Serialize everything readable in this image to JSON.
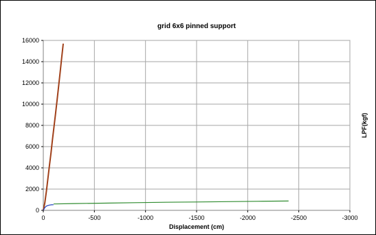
{
  "chart_data": {
    "type": "line",
    "title": "grid 6x6  pinned support",
    "xlabel": "Displacement (cm)",
    "ylabel": "LPF(kgf)",
    "xlim": [
      0,
      -3000
    ],
    "ylim": [
      0,
      16000
    ],
    "x_ticks": [
      0,
      -500,
      -1000,
      -1500,
      -2000,
      -2500,
      -3000
    ],
    "y_ticks": [
      0,
      2000,
      4000,
      6000,
      8000,
      10000,
      12000,
      14000,
      16000
    ],
    "grid": true,
    "legend": "none",
    "series": [
      {
        "color": "#a0401a",
        "x": [
          0,
          -15,
          -30,
          -45,
          -60,
          -75,
          -90,
          -105,
          -120,
          -135,
          -150,
          -165,
          -180,
          -195
        ],
        "y": [
          0,
          700,
          1800,
          3000,
          4200,
          5400,
          6700,
          7900,
          9100,
          10400,
          11700,
          13000,
          14400,
          15700
        ]
      },
      {
        "color": "#1f3fbf",
        "x": [
          0,
          -10,
          -20,
          -30,
          -45,
          -60,
          -80,
          -100
        ],
        "y": [
          0,
          180,
          310,
          400,
          460,
          500,
          520,
          530
        ]
      },
      {
        "color": "#2e8b2e",
        "x": [
          -100,
          -300,
          -600,
          -900,
          -1200,
          -1500,
          -1800,
          -2100,
          -2400
        ],
        "y": [
          600,
          640,
          680,
          720,
          760,
          790,
          820,
          850,
          880
        ]
      }
    ]
  }
}
